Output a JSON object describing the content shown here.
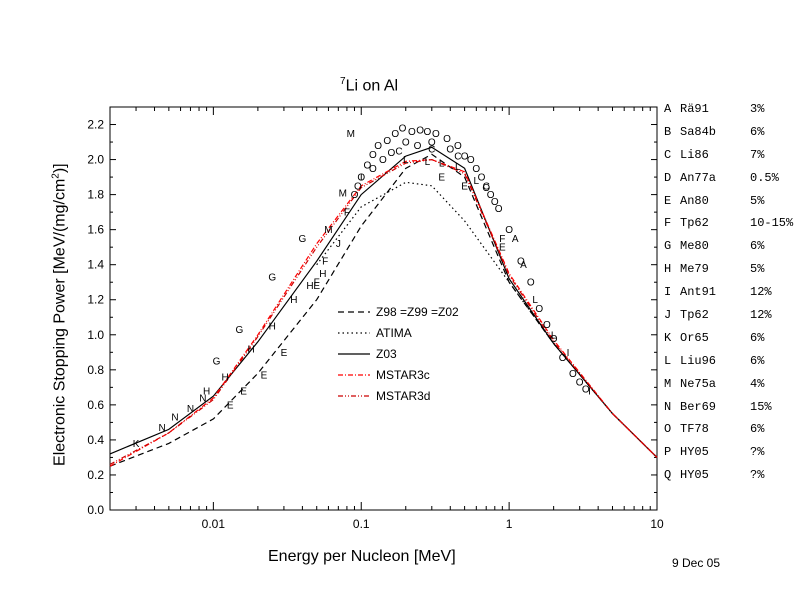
{
  "chart_data": {
    "type": "line",
    "title": {
      "sup": "7",
      "main": "Li on Al"
    },
    "xlabel": "Energy per Nucleon [MeV]",
    "ylabel": {
      "pre": "Electronic Stopping Power [MeV/(mg/cm",
      "sup": "2",
      "post": ")]"
    },
    "xscale": "log",
    "xlim": [
      0.002,
      10
    ],
    "ylim": [
      0.0,
      2.3
    ],
    "x_ticks": [
      {
        "v": 0.01,
        "label": "0.01"
      },
      {
        "v": 0.1,
        "label": "0.1"
      },
      {
        "v": 1,
        "label": "1"
      },
      {
        "v": 10,
        "label": "10"
      }
    ],
    "y_ticks": [
      "0.0",
      "0.2",
      "0.4",
      "0.6",
      "0.8",
      "1.0",
      "1.2",
      "1.4",
      "1.6",
      "1.8",
      "2.0",
      "2.2"
    ],
    "legend_position": "center",
    "series": [
      {
        "name": "Z98 =Z99 =Z02",
        "style": "dashed",
        "color": "#000000",
        "points": [
          [
            0.002,
            0.25
          ],
          [
            0.005,
            0.38
          ],
          [
            0.01,
            0.52
          ],
          [
            0.02,
            0.78
          ],
          [
            0.05,
            1.2
          ],
          [
            0.1,
            1.62
          ],
          [
            0.2,
            1.95
          ],
          [
            0.3,
            2.03
          ],
          [
            0.5,
            1.9
          ],
          [
            1,
            1.3
          ],
          [
            2,
            0.95
          ],
          [
            5,
            0.55
          ],
          [
            10,
            0.3
          ]
        ]
      },
      {
        "name": "ATIMA",
        "style": "dotted",
        "color": "#000000",
        "points": [
          [
            0.05,
            1.4
          ],
          [
            0.1,
            1.73
          ],
          [
            0.2,
            1.87
          ],
          [
            0.3,
            1.85
          ],
          [
            0.5,
            1.65
          ],
          [
            1,
            1.3
          ],
          [
            2,
            0.95
          ],
          [
            5,
            0.55
          ],
          [
            10,
            0.3
          ]
        ]
      },
      {
        "name": "Z03",
        "style": "solid",
        "color": "#000000",
        "points": [
          [
            0.002,
            0.32
          ],
          [
            0.005,
            0.46
          ],
          [
            0.01,
            0.65
          ],
          [
            0.02,
            0.96
          ],
          [
            0.05,
            1.42
          ],
          [
            0.1,
            1.8
          ],
          [
            0.2,
            2.02
          ],
          [
            0.3,
            2.07
          ],
          [
            0.5,
            1.95
          ],
          [
            1,
            1.32
          ],
          [
            2,
            0.95
          ],
          [
            5,
            0.55
          ],
          [
            10,
            0.3
          ]
        ]
      },
      {
        "name": "MSTAR3c",
        "style": "dashdot",
        "color": "#ff0000",
        "points": [
          [
            0.002,
            0.25
          ],
          [
            0.005,
            0.44
          ],
          [
            0.01,
            0.64
          ],
          [
            0.02,
            1.0
          ],
          [
            0.05,
            1.52
          ],
          [
            0.1,
            1.85
          ],
          [
            0.2,
            1.99
          ],
          [
            0.3,
            2.0
          ],
          [
            0.5,
            1.93
          ],
          [
            1,
            1.35
          ],
          [
            2,
            0.97
          ],
          [
            5,
            0.55
          ],
          [
            10,
            0.3
          ]
        ]
      },
      {
        "name": "MSTAR3d",
        "style": "dashdotdot",
        "color": "#cc0000",
        "points": [
          [
            0.002,
            0.26
          ],
          [
            0.005,
            0.44
          ],
          [
            0.01,
            0.63
          ],
          [
            0.02,
            0.99
          ],
          [
            0.05,
            1.5
          ],
          [
            0.1,
            1.84
          ],
          [
            0.2,
            1.98
          ],
          [
            0.3,
            2.0
          ],
          [
            0.5,
            1.92
          ],
          [
            1,
            1.34
          ],
          [
            2,
            0.96
          ],
          [
            5,
            0.55
          ],
          [
            10,
            0.3
          ]
        ]
      }
    ],
    "markers": [
      {
        "l": "M",
        "p": [
          [
            0.085,
            2.15
          ],
          [
            0.075,
            1.81
          ],
          [
            0.06,
            1.6
          ]
        ]
      },
      {
        "l": "G",
        "p": [
          [
            0.0105,
            0.85
          ],
          [
            0.015,
            1.03
          ],
          [
            0.025,
            1.33
          ],
          [
            0.04,
            1.55
          ]
        ]
      },
      {
        "l": "E",
        "p": [
          [
            0.013,
            0.6
          ],
          [
            0.016,
            0.68
          ],
          [
            0.022,
            0.77
          ],
          [
            0.03,
            0.9
          ],
          [
            0.05,
            1.28
          ],
          [
            0.35,
            1.9
          ],
          [
            0.5,
            1.85
          ],
          [
            0.9,
            1.5
          ]
        ]
      },
      {
        "l": "F",
        "p": [
          [
            0.05,
            1.3
          ],
          [
            0.057,
            1.42
          ],
          [
            0.08,
            1.7
          ],
          [
            0.9,
            1.55
          ]
        ]
      },
      {
        "l": "J",
        "p": [
          [
            0.07,
            1.52
          ]
        ]
      },
      {
        "l": "K",
        "p": [
          [
            0.003,
            0.38
          ]
        ]
      },
      {
        "l": "N",
        "p": [
          [
            0.0045,
            0.47
          ],
          [
            0.0055,
            0.53
          ],
          [
            0.007,
            0.58
          ],
          [
            0.0085,
            0.64
          ]
        ]
      },
      {
        "l": "H",
        "p": [
          [
            0.009,
            0.68
          ],
          [
            0.012,
            0.76
          ],
          [
            0.018,
            0.92
          ],
          [
            0.025,
            1.05
          ],
          [
            0.035,
            1.2
          ],
          [
            0.045,
            1.28
          ],
          [
            0.055,
            1.35
          ]
        ]
      },
      {
        "l": "L",
        "p": [
          [
            0.2,
            2.0
          ],
          [
            0.28,
            1.99
          ],
          [
            0.35,
            1.98
          ],
          [
            0.45,
            1.96
          ],
          [
            0.6,
            1.88
          ],
          [
            1.5,
            1.2
          ],
          [
            2.0,
            1.0
          ]
        ]
      },
      {
        "l": "A",
        "p": [
          [
            1.1,
            1.55
          ],
          [
            1.25,
            1.4
          ]
        ]
      },
      {
        "l": "C",
        "p": [
          [
            0.18,
            2.05
          ],
          [
            0.3,
            2.06
          ],
          [
            0.45,
            2.02
          ],
          [
            0.7,
            1.85
          ]
        ]
      },
      {
        "l": "I",
        "p": [
          [
            0.1,
            1.9
          ],
          [
            2.5,
            0.9
          ],
          [
            3.5,
            0.68
          ]
        ]
      },
      {
        "l": "O",
        "p": [
          [
            0.09,
            1.8
          ],
          [
            0.1,
            1.9
          ],
          [
            0.11,
            1.97
          ],
          [
            0.12,
            2.03
          ],
          [
            0.13,
            2.08
          ],
          [
            0.15,
            2.11
          ],
          [
            0.17,
            2.15
          ],
          [
            0.19,
            2.18
          ],
          [
            0.22,
            2.16
          ],
          [
            0.25,
            2.17
          ],
          [
            0.28,
            2.16
          ],
          [
            0.32,
            2.15
          ],
          [
            0.38,
            2.12
          ],
          [
            0.45,
            2.08
          ],
          [
            0.55,
            2.0
          ],
          [
            0.65,
            1.9
          ],
          [
            0.75,
            1.8
          ],
          [
            0.85,
            1.72
          ],
          [
            1.0,
            1.6
          ],
          [
            1.2,
            1.42
          ],
          [
            1.4,
            1.3
          ],
          [
            1.6,
            1.15
          ],
          [
            1.8,
            1.06
          ],
          [
            2.0,
            0.98
          ],
          [
            2.3,
            0.87
          ],
          [
            2.7,
            0.78
          ],
          [
            3.0,
            0.73
          ],
          [
            3.3,
            0.69
          ],
          [
            0.14,
            2.0
          ],
          [
            0.16,
            2.04
          ],
          [
            0.2,
            2.1
          ],
          [
            0.24,
            2.08
          ],
          [
            0.3,
            2.1
          ],
          [
            0.4,
            2.06
          ],
          [
            0.5,
            2.02
          ],
          [
            0.6,
            1.95
          ],
          [
            0.7,
            1.84
          ],
          [
            0.8,
            1.76
          ],
          [
            0.095,
            1.85
          ],
          [
            0.12,
            1.95
          ]
        ]
      }
    ]
  },
  "references": [
    {
      "id": "A",
      "name": "Rä91",
      "err": "3%"
    },
    {
      "id": "B",
      "name": "Sa84b",
      "err": "6%"
    },
    {
      "id": "C",
      "name": "Li86",
      "err": "7%"
    },
    {
      "id": "D",
      "name": "An77a",
      "err": "0.5%"
    },
    {
      "id": "E",
      "name": "An80",
      "err": "5%"
    },
    {
      "id": "F",
      "name": "Tp62",
      "err": "10-15%"
    },
    {
      "id": "G",
      "name": "Me80",
      "err": "6%"
    },
    {
      "id": "H",
      "name": "Me79",
      "err": "5%"
    },
    {
      "id": "I",
      "name": "Ant91",
      "err": "12%"
    },
    {
      "id": "J",
      "name": "Tp62",
      "err": "12%"
    },
    {
      "id": "K",
      "name": "Or65",
      "err": "6%"
    },
    {
      "id": "L",
      "name": "Liu96",
      "err": "6%"
    },
    {
      "id": "M",
      "name": "Ne75a",
      "err": "4%"
    },
    {
      "id": "N",
      "name": "Ber69",
      "err": "15%"
    },
    {
      "id": "O",
      "name": "TF78",
      "err": "6%"
    },
    {
      "id": "P",
      "name": "HY05",
      "err": "?%"
    },
    {
      "id": "Q",
      "name": "HY05",
      "err": "?%"
    }
  ],
  "footer": {
    "date": "9 Dec 05"
  }
}
